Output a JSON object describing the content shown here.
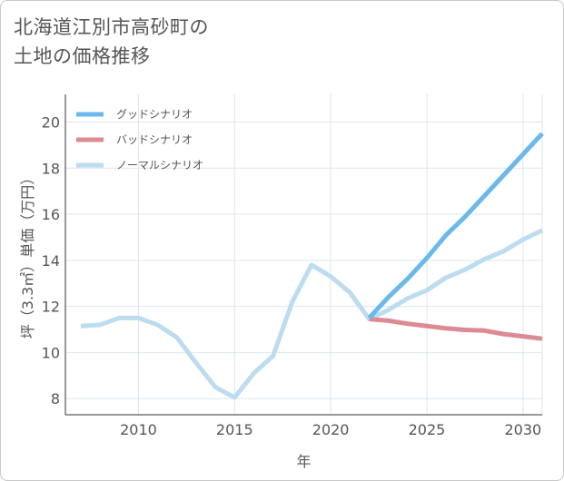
{
  "title": {
    "line1": "北海道江別市高砂町の",
    "line2": "土地の価格推移"
  },
  "colors": {
    "good": "#6ab8ec",
    "bad": "#dd8a92",
    "normal": "#bcdcef",
    "grid": "#dde6ee",
    "axis": "#333333"
  },
  "chart_data": {
    "type": "line",
    "title": "北海道江別市高砂町の土地の価格推移",
    "xlabel": "年",
    "ylabel": "坪（3.3㎡）単価（万円）",
    "xlim": [
      2006.2,
      2031
    ],
    "ylim": [
      7.3,
      21.2
    ],
    "xticks": [
      2010,
      2015,
      2020,
      2025,
      2030
    ],
    "yticks": [
      8,
      10,
      12,
      14,
      16,
      18,
      20
    ],
    "grid": true,
    "legend_position": "top-left",
    "series": [
      {
        "name": "グッドシナリオ",
        "key": "good",
        "x": [
          2022,
          2023,
          2024,
          2025,
          2026,
          2027,
          2028,
          2029,
          2030,
          2031
        ],
        "values": [
          11.5,
          12.4,
          13.2,
          14.1,
          15.1,
          15.9,
          16.8,
          17.7,
          18.6,
          19.5
        ]
      },
      {
        "name": "バッドシナリオ",
        "key": "bad",
        "x": [
          2022,
          2023,
          2024,
          2025,
          2026,
          2027,
          2028,
          2029,
          2030,
          2031
        ],
        "values": [
          11.45,
          11.38,
          11.25,
          11.15,
          11.05,
          10.98,
          10.95,
          10.8,
          10.7,
          10.6
        ]
      },
      {
        "name": "ノーマルシナリオ",
        "key": "normal",
        "x": [
          2007,
          2008,
          2009,
          2010,
          2011,
          2012,
          2013,
          2014,
          2015,
          2016,
          2017,
          2018,
          2019,
          2020,
          2021,
          2022,
          2023,
          2024,
          2025,
          2026,
          2027,
          2028,
          2029,
          2030,
          2031
        ],
        "values": [
          11.15,
          11.2,
          11.5,
          11.5,
          11.2,
          10.65,
          9.55,
          8.5,
          8.05,
          9.1,
          9.85,
          12.2,
          13.8,
          13.3,
          12.6,
          11.45,
          11.85,
          12.35,
          12.7,
          13.25,
          13.6,
          14.05,
          14.4,
          14.9,
          15.3
        ]
      }
    ]
  }
}
